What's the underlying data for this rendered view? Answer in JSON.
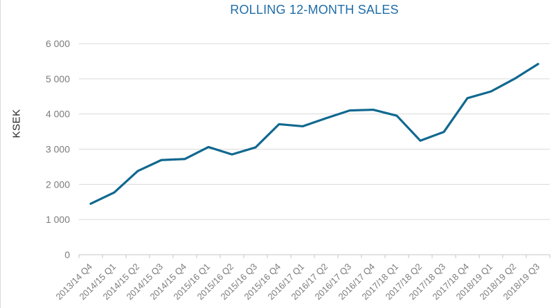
{
  "chart_data": {
    "type": "line",
    "title": "ROLLING 12-MONTH SALES",
    "ylabel": "KSEK",
    "xlabel": "",
    "categories": [
      "2013/14 Q4",
      "2014/15 Q1",
      "2014/15 Q2",
      "2014/15 Q3",
      "2014/15 Q4",
      "2015/16 Q1",
      "2015/16 Q2",
      "2015/16 Q3",
      "2015/16 Q4",
      "2016/17 Q1",
      "2016/17 Q2",
      "2016/17 Q3",
      "2016/17 Q4",
      "2017/18 Q1",
      "2017/18 Q2",
      "2017/18 Q3",
      "2017/18 Q4",
      "2018/19 Q1",
      "2018/19 Q2",
      "2018/19 Q3"
    ],
    "values": [
      1450,
      1770,
      2380,
      2690,
      2720,
      3060,
      2850,
      3050,
      3710,
      3650,
      3880,
      4100,
      4120,
      3950,
      3240,
      3490,
      4450,
      4640,
      5000,
      5420
    ],
    "ylim": [
      0,
      6000
    ],
    "ytick_step": 1000,
    "ytick_labels": [
      "0",
      "1 000",
      "2 000",
      "3 000",
      "4 000",
      "5 000",
      "6 000"
    ],
    "grid": true,
    "legend": "none",
    "colors": {
      "series_line": "#10688f",
      "title_text": "#1f6da8",
      "tick_label_text": "#7c7c7c",
      "gridline": "#d9d9d9",
      "axis_line": "#c6c6c6",
      "ylabel_text": "#262626",
      "background": "#ffffff"
    }
  }
}
